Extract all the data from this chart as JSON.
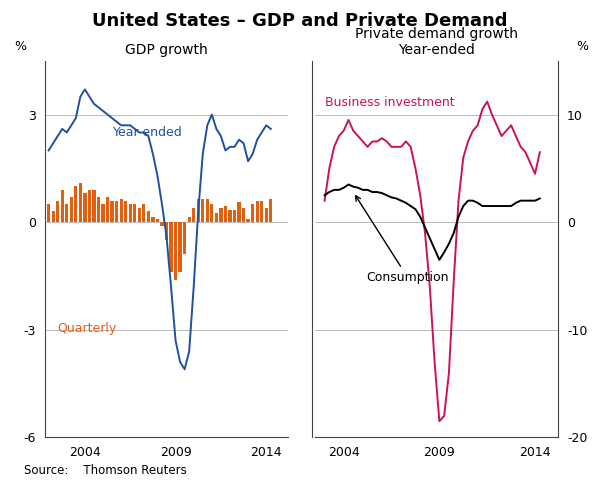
{
  "title": "United States – GDP and Private Demand",
  "source": "Source:    Thomson Reuters",
  "left_title": "GDP growth",
  "right_title": "Private demand growth\nYear-ended",
  "left_ylabel": "%",
  "right_ylabel": "%",
  "left_ylim": [
    -6,
    4.5
  ],
  "right_ylim": [
    -20,
    15
  ],
  "left_yticks": [
    -6,
    -3,
    0,
    3
  ],
  "right_yticks": [
    -20,
    -10,
    0,
    10
  ],
  "colors": {
    "blue": "#2050a0",
    "orange": "#e06010",
    "pink": "#cc1060",
    "black": "#000000",
    "gray_grid": "#bbbbbb"
  },
  "gdp_year_ended": {
    "x": [
      2002.0,
      2002.25,
      2002.5,
      2002.75,
      2003.0,
      2003.25,
      2003.5,
      2003.75,
      2004.0,
      2004.25,
      2004.5,
      2004.75,
      2005.0,
      2005.25,
      2005.5,
      2005.75,
      2006.0,
      2006.25,
      2006.5,
      2006.75,
      2007.0,
      2007.25,
      2007.5,
      2007.75,
      2008.0,
      2008.25,
      2008.5,
      2008.75,
      2009.0,
      2009.25,
      2009.5,
      2009.75,
      2010.0,
      2010.25,
      2010.5,
      2010.75,
      2011.0,
      2011.25,
      2011.5,
      2011.75,
      2012.0,
      2012.25,
      2012.5,
      2012.75,
      2013.0,
      2013.25,
      2013.5,
      2013.75,
      2014.0,
      2014.25
    ],
    "y": [
      2.0,
      2.2,
      2.4,
      2.6,
      2.5,
      2.7,
      2.9,
      3.5,
      3.7,
      3.5,
      3.3,
      3.2,
      3.1,
      3.0,
      2.9,
      2.8,
      2.7,
      2.7,
      2.7,
      2.6,
      2.5,
      2.5,
      2.4,
      1.9,
      1.3,
      0.5,
      -0.4,
      -1.8,
      -3.3,
      -3.9,
      -4.1,
      -3.6,
      -1.8,
      0.3,
      1.9,
      2.7,
      3.0,
      2.6,
      2.4,
      2.0,
      2.1,
      2.1,
      2.3,
      2.2,
      1.7,
      1.9,
      2.3,
      2.5,
      2.7,
      2.6
    ]
  },
  "gdp_quarterly": {
    "x": [
      2002.0,
      2002.25,
      2002.5,
      2002.75,
      2003.0,
      2003.25,
      2003.5,
      2003.75,
      2004.0,
      2004.25,
      2004.5,
      2004.75,
      2005.0,
      2005.25,
      2005.5,
      2005.75,
      2006.0,
      2006.25,
      2006.5,
      2006.75,
      2007.0,
      2007.25,
      2007.5,
      2007.75,
      2008.0,
      2008.25,
      2008.5,
      2008.75,
      2009.0,
      2009.25,
      2009.5,
      2009.75,
      2010.0,
      2010.25,
      2010.5,
      2010.75,
      2011.0,
      2011.25,
      2011.5,
      2011.75,
      2012.0,
      2012.25,
      2012.5,
      2012.75,
      2013.0,
      2013.25,
      2013.5,
      2013.75,
      2014.0,
      2014.25
    ],
    "y": [
      0.5,
      0.3,
      0.6,
      0.9,
      0.5,
      0.7,
      1.0,
      1.1,
      0.8,
      0.9,
      0.9,
      0.7,
      0.5,
      0.7,
      0.6,
      0.6,
      0.65,
      0.6,
      0.5,
      0.5,
      0.4,
      0.5,
      0.3,
      0.15,
      0.1,
      -0.1,
      -0.5,
      -1.4,
      -1.6,
      -1.4,
      -0.9,
      0.15,
      0.4,
      0.65,
      0.65,
      0.65,
      0.5,
      0.25,
      0.4,
      0.45,
      0.35,
      0.35,
      0.55,
      0.4,
      0.1,
      0.5,
      0.6,
      0.6,
      0.4,
      0.65
    ]
  },
  "business_investment": {
    "x": [
      2003.0,
      2003.25,
      2003.5,
      2003.75,
      2004.0,
      2004.25,
      2004.5,
      2004.75,
      2005.0,
      2005.25,
      2005.5,
      2005.75,
      2006.0,
      2006.25,
      2006.5,
      2006.75,
      2007.0,
      2007.25,
      2007.5,
      2007.75,
      2008.0,
      2008.25,
      2008.5,
      2008.75,
      2009.0,
      2009.25,
      2009.5,
      2009.75,
      2010.0,
      2010.25,
      2010.5,
      2010.75,
      2011.0,
      2011.25,
      2011.5,
      2011.75,
      2012.0,
      2012.25,
      2012.5,
      2012.75,
      2013.0,
      2013.25,
      2013.5,
      2013.75,
      2014.0,
      2014.25
    ],
    "y": [
      2.0,
      5.0,
      7.0,
      8.0,
      8.5,
      9.5,
      8.5,
      8.0,
      7.5,
      7.0,
      7.5,
      7.5,
      7.8,
      7.5,
      7.0,
      7.0,
      7.0,
      7.5,
      7.0,
      5.0,
      2.5,
      -1.0,
      -6.0,
      -13.0,
      -18.5,
      -18.0,
      -14.0,
      -5.5,
      2.0,
      6.0,
      7.5,
      8.5,
      9.0,
      10.5,
      11.2,
      10.0,
      9.0,
      8.0,
      8.5,
      9.0,
      8.0,
      7.0,
      6.5,
      5.5,
      4.5,
      6.5
    ]
  },
  "consumption": {
    "x": [
      2003.0,
      2003.25,
      2003.5,
      2003.75,
      2004.0,
      2004.25,
      2004.5,
      2004.75,
      2005.0,
      2005.25,
      2005.5,
      2005.75,
      2006.0,
      2006.25,
      2006.5,
      2006.75,
      2007.0,
      2007.25,
      2007.5,
      2007.75,
      2008.0,
      2008.25,
      2008.5,
      2008.75,
      2009.0,
      2009.25,
      2009.5,
      2009.75,
      2010.0,
      2010.25,
      2010.5,
      2010.75,
      2011.0,
      2011.25,
      2011.5,
      2011.75,
      2012.0,
      2012.25,
      2012.5,
      2012.75,
      2013.0,
      2013.25,
      2013.5,
      2013.75,
      2014.0,
      2014.25
    ],
    "y": [
      2.5,
      2.8,
      3.0,
      3.0,
      3.2,
      3.5,
      3.3,
      3.2,
      3.0,
      3.0,
      2.8,
      2.8,
      2.7,
      2.5,
      2.3,
      2.2,
      2.0,
      1.8,
      1.5,
      1.2,
      0.5,
      -0.5,
      -1.5,
      -2.5,
      -3.5,
      -2.8,
      -2.0,
      -1.0,
      0.5,
      1.5,
      2.0,
      2.0,
      1.8,
      1.5,
      1.5,
      1.5,
      1.5,
      1.5,
      1.5,
      1.5,
      1.8,
      2.0,
      2.0,
      2.0,
      2.0,
      2.2
    ]
  }
}
